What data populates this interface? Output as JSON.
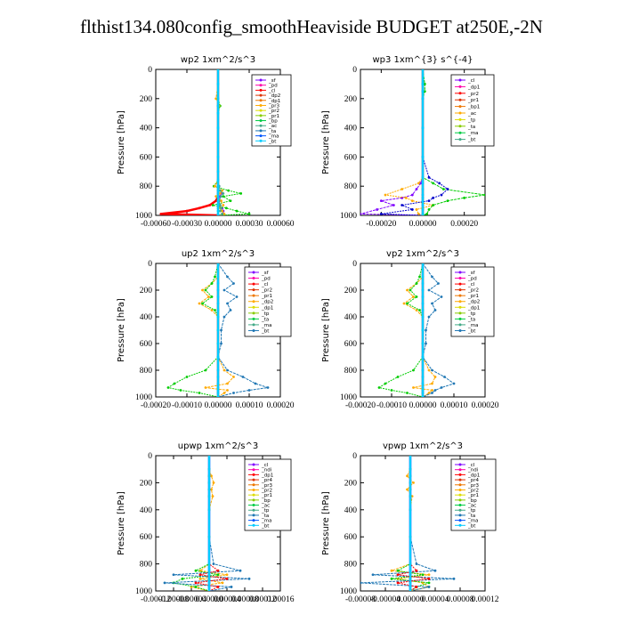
{
  "figure_title": "flthist134.080config_smoothHeaviside  BUDGET at250E,-2N",
  "chart_data": [
    {
      "type": "line",
      "title": "wp2   1xm^2/s^3",
      "ylabel": "Pressure [hPa]",
      "xlabel": "",
      "ylim": [
        1000,
        0
      ],
      "xlim": [
        -0.0006,
        0.0006
      ],
      "xticks": [
        "-0.00060",
        "-0.00030",
        "0.00000",
        "0.00030",
        "0.00060"
      ],
      "yticks": [
        "0",
        "200",
        "400",
        "600",
        "800",
        "1000"
      ],
      "legend": [
        "_sf",
        "_pd",
        "_cl",
        "_dp2",
        "_dp1",
        "_pr3",
        "_pr2",
        "_pr1",
        "_bp",
        "_ac",
        "_ta",
        "_ma",
        "_bt"
      ],
      "legend_position": "top-right",
      "y": [
        0,
        100,
        200,
        250,
        300,
        400,
        500,
        600,
        700,
        760,
        800,
        830,
        850,
        870,
        900,
        930,
        950,
        970,
        990,
        1000
      ],
      "series": [
        {
          "name": "_pd",
          "color": "#7f00ff",
          "values": [
            0,
            0,
            0,
            0,
            0,
            0,
            0,
            0,
            0,
            0,
            1e-05,
            2e-05,
            3e-05,
            2e-05,
            1e-05,
            2e-05,
            4e-05,
            5e-05,
            5e-05,
            0
          ]
        },
        {
          "name": "_cl",
          "color": "#ff0000",
          "values": [
            0,
            0,
            0,
            0,
            0,
            0,
            0,
            0,
            0,
            0,
            0,
            0,
            0,
            0,
            -2e-05,
            -8e-05,
            -0.00018,
            -0.0003,
            -0.00055,
            0
          ]
        },
        {
          "name": "_pr1",
          "color": "#00cc00",
          "values": [
            0,
            0,
            0,
            2e-05,
            0,
            0,
            0,
            0,
            0,
            0,
            -4e-05,
            0.0001,
            0.00022,
            5e-05,
            0.00012,
            -5e-05,
            8e-05,
            0.00018,
            0.0003,
            0
          ]
        },
        {
          "name": "_pr2",
          "color": "#ffaa00",
          "values": [
            0,
            0,
            -2e-05,
            1e-05,
            0,
            0,
            0,
            0,
            0,
            0,
            -3e-05,
            4e-05,
            2e-05,
            -2e-05,
            3e-05,
            5e-05,
            2e-05,
            4e-05,
            6e-05,
            0
          ]
        },
        {
          "name": "_ac",
          "color": "#44aa88",
          "values": [
            0,
            0,
            0,
            0,
            0,
            0,
            0,
            0,
            0,
            0,
            1e-05,
            2e-05,
            5e-05,
            3e-05,
            1e-05,
            2e-05,
            3e-05,
            2e-05,
            4e-05,
            0
          ]
        },
        {
          "name": "_bt",
          "color": "#00ccff",
          "values": [
            0,
            0,
            0,
            0,
            0,
            0,
            0,
            0,
            0,
            0,
            0,
            0,
            0,
            0,
            0,
            0,
            0,
            0,
            0,
            0
          ]
        }
      ]
    },
    {
      "type": "line",
      "title": "wp3   1xm^{3} s^{-4}",
      "ylabel": "Pressure [hPa]",
      "xlabel": "",
      "ylim": [
        1000,
        0
      ],
      "xlim": [
        -0.0003,
        0.0003
      ],
      "xticks": [
        "-0.00020",
        "0.00000",
        "0.00020"
      ],
      "yticks": [
        "0",
        "200",
        "400",
        "600",
        "800",
        "1000"
      ],
      "legend": [
        "_cl",
        "_dp1",
        "_pr2",
        "_pr1",
        "_bp1",
        "_ac",
        "_tp",
        "_ta",
        "_ma",
        "_bt"
      ],
      "legend_position": "top-right",
      "y": [
        0,
        100,
        150,
        200,
        400,
        600,
        740,
        780,
        820,
        860,
        880,
        900,
        930,
        960,
        990,
        1000
      ],
      "series": [
        {
          "name": "_cl",
          "color": "#ff0000",
          "values": [
            0,
            0,
            0,
            0,
            0,
            0,
            0,
            0,
            0,
            0,
            0,
            0,
            0,
            0,
            0,
            0
          ]
        },
        {
          "name": "_dp1",
          "color": "#7f00ff",
          "values": [
            0,
            0,
            0,
            0,
            0,
            0,
            0,
            -1e-05,
            -3e-05,
            -5e-05,
            -0.0001,
            -0.0002,
            -0.00014,
            -0.00022,
            -0.0003,
            0
          ]
        },
        {
          "name": "_pr2",
          "color": "#ffaa00",
          "values": [
            0,
            0,
            0,
            0,
            0,
            0,
            0,
            -2e-05,
            -0.0001,
            -0.00018,
            -8e-05,
            -5e-05,
            5e-05,
            -3e-05,
            -2e-05,
            0
          ]
        },
        {
          "name": "_ac",
          "color": "#00cc00",
          "values": [
            0,
            1e-05,
            1e-05,
            0,
            0,
            0,
            0,
            5e-05,
            0.0001,
            0.0003,
            0.0002,
            0.00012,
            5e-05,
            3e-05,
            2e-05,
            0
          ]
        },
        {
          "name": "_tp",
          "color": "#0000cc",
          "values": [
            0,
            0,
            0,
            0,
            0,
            0,
            3e-05,
            8e-05,
            0.00012,
            9e-05,
            5e-05,
            3e-05,
            -0.0001,
            -5e-05,
            -0.0002,
            0
          ]
        },
        {
          "name": "_bt",
          "color": "#00ccff",
          "values": [
            0,
            0,
            0,
            0,
            0,
            0,
            0,
            0,
            0,
            0,
            0,
            0,
            0,
            0,
            0,
            0
          ]
        }
      ]
    },
    {
      "type": "line",
      "title": "up2   1xm^2/s^3",
      "ylabel": "Pressure [hPa]",
      "xlabel": "",
      "ylim": [
        1000,
        0
      ],
      "xlim": [
        -0.0002,
        0.0002
      ],
      "xticks": [
        "-0.00020",
        "-0.00010",
        "0.00000",
        "0.00010",
        "0.00020"
      ],
      "yticks": [
        "0",
        "200",
        "400",
        "600",
        "800",
        "1000"
      ],
      "legend": [
        "_sf",
        "_pd",
        "_cl",
        "_pr2",
        "_pr1",
        "_dp2",
        "_dp1",
        "_tp",
        "_ta",
        "_ma",
        "_bt"
      ],
      "legend_position": "top-right",
      "y": [
        0,
        100,
        150,
        200,
        250,
        300,
        350,
        400,
        500,
        600,
        700,
        800,
        850,
        900,
        930,
        950,
        970,
        1000
      ],
      "series": [
        {
          "name": "_cl",
          "color": "#ff0000",
          "values": [
            0,
            0,
            0,
            0,
            0,
            0,
            0,
            0,
            0,
            0,
            0,
            0,
            0,
            0,
            0,
            0,
            0,
            0
          ]
        },
        {
          "name": "_pr2",
          "color": "#ffaa00",
          "values": [
            0,
            0,
            -2e-05,
            -5e-05,
            -3e-05,
            -6e-05,
            -2e-05,
            0,
            0,
            0,
            0,
            2e-05,
            5e-05,
            3e-05,
            -4e-05,
            3e-05,
            2e-05,
            0
          ]
        },
        {
          "name": "_pr1",
          "color": "#00cc00",
          "values": [
            0,
            -1e-05,
            -2e-05,
            -4e-05,
            -2e-05,
            -5e-05,
            -1e-05,
            0,
            0,
            0,
            0,
            -4e-05,
            -0.0001,
            -0.00014,
            -0.00016,
            -0.00012,
            -6e-05,
            0
          ]
        },
        {
          "name": "_tp",
          "color": "#1f77b4",
          "values": [
            0,
            3e-05,
            5e-05,
            2e-05,
            6e-05,
            3e-05,
            4e-05,
            2e-05,
            1e-05,
            1e-05,
            0,
            3e-05,
            8e-05,
            0.00012,
            0.00016,
            0.0001,
            5e-05,
            0
          ]
        },
        {
          "name": "_bt",
          "color": "#00ccff",
          "values": [
            0,
            0,
            0,
            0,
            0,
            0,
            0,
            0,
            0,
            0,
            0,
            0,
            0,
            0,
            0,
            0,
            0,
            0
          ]
        }
      ]
    },
    {
      "type": "line",
      "title": "vp2   1xm^2/s^3",
      "ylabel": "Pressure [hPa]",
      "xlabel": "",
      "ylim": [
        1000,
        0
      ],
      "xlim": [
        -0.0002,
        0.0002
      ],
      "xticks": [
        "-0.00020",
        "-0.00010",
        "0.00000",
        "0.00010",
        "0.00020"
      ],
      "yticks": [
        "0",
        "200",
        "400",
        "600",
        "800",
        "1000"
      ],
      "legend": [
        "_sf",
        "_pd",
        "_cl",
        "_pr2",
        "_pr1",
        "_dp2",
        "_dp1",
        "_tp",
        "_ta",
        "_ma",
        "_bt"
      ],
      "legend_position": "top-right",
      "y": [
        0,
        100,
        150,
        200,
        250,
        300,
        350,
        400,
        500,
        600,
        700,
        800,
        850,
        900,
        930,
        950,
        970,
        1000
      ],
      "series": [
        {
          "name": "_cl",
          "color": "#ff0000",
          "values": [
            0,
            0,
            0,
            0,
            0,
            0,
            0,
            0,
            0,
            0,
            0,
            0,
            0,
            0,
            0,
            0,
            0,
            0
          ]
        },
        {
          "name": "_pr2",
          "color": "#ffaa00",
          "values": [
            0,
            0,
            -2e-05,
            -5e-05,
            -3e-05,
            -6e-05,
            -2e-05,
            0,
            0,
            0,
            0,
            2e-05,
            4e-05,
            3e-05,
            -3e-05,
            3e-05,
            2e-05,
            0
          ]
        },
        {
          "name": "_pr1",
          "color": "#00cc00",
          "values": [
            0,
            -1e-05,
            -2e-05,
            -4e-05,
            -2e-05,
            -5e-05,
            -1e-05,
            0,
            0,
            0,
            0,
            -3e-05,
            -8e-05,
            -0.00012,
            -0.00014,
            -0.0001,
            -5e-05,
            0
          ]
        },
        {
          "name": "_tp",
          "color": "#1f77b4",
          "values": [
            0,
            3e-05,
            5e-05,
            2e-05,
            6e-05,
            3e-05,
            4e-05,
            2e-05,
            1e-05,
            1e-05,
            0,
            3e-05,
            7e-05,
            0.0001,
            6e-05,
            4e-05,
            3e-05,
            0
          ]
        },
        {
          "name": "_bt",
          "color": "#00ccff",
          "values": [
            0,
            0,
            0,
            0,
            0,
            0,
            0,
            0,
            0,
            0,
            0,
            0,
            0,
            0,
            0,
            0,
            0,
            0
          ]
        }
      ]
    },
    {
      "type": "line",
      "title": "upwp   1xm^2/s^3",
      "ylabel": "Pressure [hPa]",
      "xlabel": "",
      "ylim": [
        1000,
        0
      ],
      "xlim": [
        -0.00012,
        0.00016
      ],
      "xticks": [
        "-0.00012",
        "-0.00008",
        "-0.00004",
        "0.00000",
        "0.00004",
        "0.00008",
        "0.00012",
        "0.00016"
      ],
      "yticks": [
        "0",
        "200",
        "400",
        "600",
        "800",
        "1000"
      ],
      "legend": [
        "_cl",
        "_ndi",
        "_dp1",
        "_pr4",
        "_pr3",
        "_pr2",
        "_pr1",
        "_bp",
        "_ac",
        "_tp",
        "_ta",
        "_ma",
        "_bt"
      ],
      "legend_position": "top-right",
      "y": [
        0,
        100,
        150,
        200,
        250,
        300,
        400,
        600,
        800,
        850,
        880,
        910,
        940,
        970,
        1000
      ],
      "series": [
        {
          "name": "_cl",
          "color": "#7f00ff",
          "values": [
            0,
            0,
            0,
            0,
            0,
            0,
            0,
            0,
            0,
            0,
            0,
            0,
            0,
            0,
            0
          ]
        },
        {
          "name": "_pr3",
          "color": "#ffaa00",
          "values": [
            0,
            0,
            5e-06,
            1e-05,
            5e-06,
            8e-06,
            0,
            0,
            0,
            -2e-05,
            4e-05,
            -2e-05,
            3e-05,
            -4e-05,
            0
          ]
        },
        {
          "name": "_pr1",
          "color": "#00cc00",
          "values": [
            0,
            0,
            0,
            0,
            0,
            0,
            0,
            0,
            0,
            -3e-05,
            2e-05,
            -6e-05,
            -8e-05,
            -3e-05,
            0
          ]
        },
        {
          "name": "_tp",
          "color": "#1f77b4",
          "values": [
            0,
            0,
            0,
            0,
            0,
            0,
            0,
            0,
            1e-05,
            7e-05,
            -8e-05,
            9e-05,
            -0.0001,
            5e-05,
            0
          ]
        },
        {
          "name": "_ndi",
          "color": "#ff0000",
          "values": [
            0,
            0,
            0,
            0,
            0,
            0,
            0,
            0,
            0,
            2e-05,
            -2e-05,
            4e-05,
            -3e-05,
            2e-05,
            0
          ]
        },
        {
          "name": "_bt",
          "color": "#00ccff",
          "values": [
            0,
            0,
            0,
            0,
            0,
            0,
            0,
            0,
            0,
            0,
            0,
            0,
            0,
            0,
            0
          ]
        }
      ]
    },
    {
      "type": "line",
      "title": "vpwp   1xm^2/s^3",
      "ylabel": "Pressure [hPa]",
      "xlabel": "",
      "ylim": [
        1000,
        0
      ],
      "xlim": [
        -8e-05,
        0.00012
      ],
      "xticks": [
        "-0.00008",
        "-0.00004",
        "0.00000",
        "0.00004",
        "0.00008",
        "0.00012"
      ],
      "yticks": [
        "0",
        "200",
        "400",
        "600",
        "800",
        "1000"
      ],
      "legend": [
        "_cl",
        "_ndi",
        "_dp1",
        "_pr4",
        "_pr3",
        "_pr2",
        "_pr1",
        "_bp",
        "_ac",
        "_tp",
        "_ta",
        "_ma",
        "_bt"
      ],
      "legend_position": "top-right",
      "y": [
        0,
        100,
        150,
        200,
        250,
        300,
        400,
        600,
        800,
        850,
        880,
        910,
        940,
        970,
        1000
      ],
      "series": [
        {
          "name": "_cl",
          "color": "#7f00ff",
          "values": [
            0,
            0,
            0,
            0,
            0,
            0,
            0,
            0,
            0,
            0,
            0,
            0,
            0,
            0,
            0
          ]
        },
        {
          "name": "_pr3",
          "color": "#ffaa00",
          "values": [
            0,
            0,
            -5e-06,
            5e-06,
            -5e-06,
            3e-06,
            0,
            0,
            0,
            -3e-05,
            3e-05,
            -2e-05,
            2e-05,
            3e-05,
            0
          ]
        },
        {
          "name": "_pr1",
          "color": "#00cc00",
          "values": [
            0,
            0,
            0,
            0,
            0,
            0,
            0,
            0,
            0,
            -2e-05,
            2e-05,
            -3e-05,
            3e-05,
            1e-05,
            0
          ]
        },
        {
          "name": "_tp",
          "color": "#1f77b4",
          "values": [
            0,
            0,
            0,
            0,
            0,
            0,
            0,
            0,
            1e-05,
            4e-05,
            -6e-05,
            7e-05,
            -8e-05,
            3e-05,
            0
          ]
        },
        {
          "name": "_ndi",
          "color": "#ff0000",
          "values": [
            0,
            0,
            0,
            0,
            0,
            0,
            0,
            0,
            0,
            1e-05,
            -2e-05,
            3e-05,
            -2e-05,
            1e-05,
            0
          ]
        },
        {
          "name": "_bt",
          "color": "#00ccff",
          "values": [
            0,
            0,
            0,
            0,
            0,
            0,
            0,
            0,
            0,
            0,
            0,
            0,
            0,
            0,
            0
          ]
        }
      ]
    }
  ]
}
